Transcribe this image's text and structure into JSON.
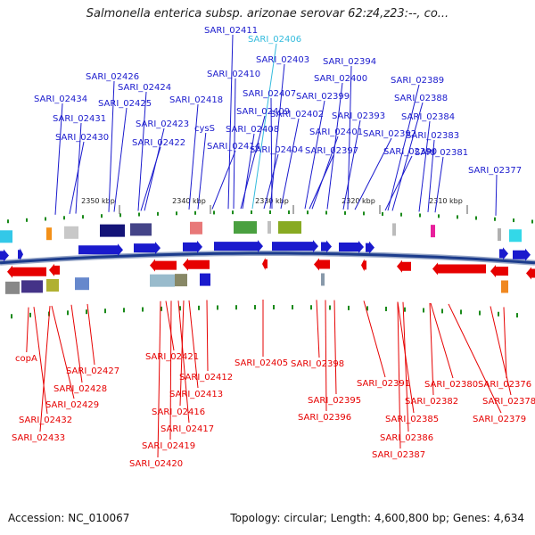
{
  "title": "Salmonella enterica subsp. arizonae serovar 62:z4,z23:--, co...",
  "footer": {
    "accession": "Accession: NC_010067",
    "topology": "Topology: circular; Length: 4,600,800 bp; Genes: 4,634"
  },
  "colors": {
    "forward": "#1a1acd",
    "reverse": "#e60000",
    "highlight": "#33bbdd",
    "backbone": "#1c3c8c"
  },
  "scale_labels": [
    "2350 kbp",
    "2340 kbp",
    "2330 kbp",
    "2320 kbp",
    "2310 kbp"
  ],
  "top_genes": [
    {
      "label": "SARI_02411",
      "highlight": false
    },
    {
      "label": "SARI_02406",
      "highlight": true
    },
    {
      "label": "SARI_02403",
      "highlight": false
    },
    {
      "label": "SARI_02394",
      "highlight": false
    },
    {
      "label": "SARI_02410",
      "highlight": false
    },
    {
      "label": "SARI_02426",
      "highlight": false
    },
    {
      "label": "SARI_02400",
      "highlight": false
    },
    {
      "label": "SARI_02389",
      "highlight": false
    },
    {
      "label": "SARI_02424",
      "highlight": false
    },
    {
      "label": "SARI_02407",
      "highlight": false
    },
    {
      "label": "SARI_02399",
      "highlight": false
    },
    {
      "label": "SARI_02388",
      "highlight": false
    },
    {
      "label": "SARI_02434",
      "highlight": false
    },
    {
      "label": "SARI_02425",
      "highlight": false
    },
    {
      "label": "SARI_02418",
      "highlight": false
    },
    {
      "label": "SARI_02409",
      "highlight": false
    },
    {
      "label": "SARI_02402",
      "highlight": false
    },
    {
      "label": "SARI_02393",
      "highlight": false
    },
    {
      "label": "SARI_02384",
      "highlight": false
    },
    {
      "label": "SARI_02431",
      "highlight": false
    },
    {
      "label": "SARI_02423",
      "highlight": false
    },
    {
      "label": "cysS",
      "highlight": false
    },
    {
      "label": "SARI_02408",
      "highlight": false
    },
    {
      "label": "SARI_02401",
      "highlight": false
    },
    {
      "label": "SARI_02392",
      "highlight": false
    },
    {
      "label": "SARI_02383",
      "highlight": false
    },
    {
      "label": "SARI_02430",
      "highlight": false
    },
    {
      "label": "SARI_02422",
      "highlight": false
    },
    {
      "label": "SARI_02414",
      "highlight": false
    },
    {
      "label": "SARI_02404",
      "highlight": false
    },
    {
      "label": "SARI_02397",
      "highlight": false
    },
    {
      "label": "SARI_02390",
      "highlight": false
    },
    {
      "label": "SARI_02381",
      "highlight": false
    },
    {
      "label": "SARI_02377",
      "highlight": false
    }
  ],
  "bottom_genes": [
    {
      "label": "copA"
    },
    {
      "label": "SARI_02421"
    },
    {
      "label": "SARI_02405"
    },
    {
      "label": "SARI_02398"
    },
    {
      "label": "SARI_02427"
    },
    {
      "label": "SARI_02412"
    },
    {
      "label": "SARI_02391"
    },
    {
      "label": "SARI_02380"
    },
    {
      "label": "SARI_02376"
    },
    {
      "label": "SARI_02428"
    },
    {
      "label": "SARI_02413"
    },
    {
      "label": "SARI_02395"
    },
    {
      "label": "SARI_02382"
    },
    {
      "label": "SARI_02378"
    },
    {
      "label": "SARI_02429"
    },
    {
      "label": "SARI_02416"
    },
    {
      "label": "SARI_02396"
    },
    {
      "label": "SARI_02385"
    },
    {
      "label": "SARI_02379"
    },
    {
      "label": "SARI_02432"
    },
    {
      "label": "SARI_02417"
    },
    {
      "label": "SARI_02386"
    },
    {
      "label": "SARI_02433"
    },
    {
      "label": "SARI_02419"
    },
    {
      "label": "SARI_02387"
    },
    {
      "label": "SARI_02420"
    }
  ]
}
